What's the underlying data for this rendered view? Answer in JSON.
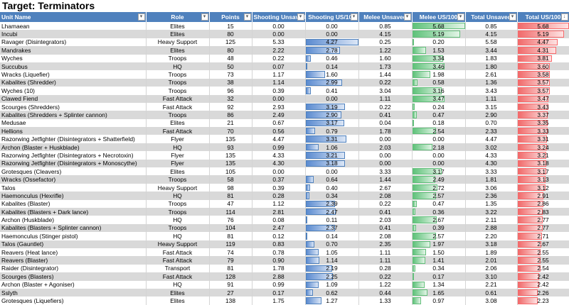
{
  "title": "Target: Terminators",
  "headers": [
    "Unit Name",
    "Role",
    "Points",
    "Shooting Unsaved",
    "Shooting US/100",
    "Melee Unsaved",
    "Melee US/100",
    "Total Unsaved",
    "Total US/100"
  ],
  "filter_icon": "dropdown-arrow",
  "sorted_icon": "sort-desc-filter",
  "colors": {
    "header": "#4f81bd",
    "band": "#d9d9d9",
    "blue_bar": "#5b8bd0",
    "green_bar": "#63be7b",
    "red_bar": "#f8696b"
  },
  "rows": [
    [
      "Lhamaean",
      "Elites",
      "15",
      "0.00",
      "0.00",
      "0.85",
      "5.68",
      "0.85",
      "5.68"
    ],
    [
      "Incubi",
      "Elites",
      "80",
      "0.00",
      "0.00",
      "4.15",
      "5.19",
      "4.15",
      "5.19"
    ],
    [
      "Ravager (Disintegrators)",
      "Heavy Support",
      "125",
      "5.33",
      "4.27",
      "0.25",
      "0.20",
      "5.58",
      "4.47"
    ],
    [
      "Mandrakes",
      "Elites",
      "80",
      "2.22",
      "2.78",
      "1.22",
      "1.53",
      "3.44",
      "4.31"
    ],
    [
      "Wyches",
      "Troops",
      "48",
      "0.22",
      "0.46",
      "1.60",
      "3.34",
      "1.83",
      "3.81"
    ],
    [
      "Succubus",
      "HQ",
      "50",
      "0.07",
      "0.14",
      "1.73",
      "3.46",
      "1.80",
      "3.60"
    ],
    [
      "Wracks (Liquefier)",
      "Troops",
      "73",
      "1.17",
      "1.60",
      "1.44",
      "1.98",
      "2.61",
      "3.58"
    ],
    [
      "Kabalites (Shredder)",
      "Troops",
      "38",
      "1.14",
      "2.99",
      "0.22",
      "0.58",
      "1.36",
      "3.57"
    ],
    [
      "Wyches (10)",
      "Troops",
      "96",
      "0.39",
      "0.41",
      "3.04",
      "3.16",
      "3.43",
      "3.57"
    ],
    [
      "Clawed Fiend",
      "Fast Attack",
      "32",
      "0.00",
      "0.00",
      "1.11",
      "3.47",
      "1.11",
      "3.47"
    ],
    [
      "Scourges (Shredders)",
      "Fast Attack",
      "92",
      "2.93",
      "3.19",
      "0.22",
      "0.24",
      "3.15",
      "3.43"
    ],
    [
      "Kabalites (Shredders + Splinter cannon)",
      "Troops",
      "86",
      "2.49",
      "2.90",
      "0.41",
      "0.47",
      "2.90",
      "3.37"
    ],
    [
      "Medusae",
      "Elites",
      "21",
      "0.67",
      "3.17",
      "0.04",
      "0.18",
      "0.70",
      "3.35"
    ],
    [
      "Hellions",
      "Fast Attack",
      "70",
      "0.56",
      "0.79",
      "1.78",
      "2.54",
      "2.33",
      "3.33"
    ],
    [
      "Razorwing Jetfighter (Disintegrators + Shatterfield)",
      "Flyer",
      "135",
      "4.47",
      "3.31",
      "0.00",
      "0.00",
      "4.47",
      "3.31"
    ],
    [
      "Archon (Blaster + Huskblade)",
      "HQ",
      "93",
      "0.99",
      "1.06",
      "2.03",
      "2.18",
      "3.02",
      "3.24"
    ],
    [
      "Razorwing Jetfighter (Disintegrators + Necrotoxin)",
      "Flyer",
      "135",
      "4.33",
      "3.21",
      "0.00",
      "0.00",
      "4.33",
      "3.21"
    ],
    [
      "Razorwing Jetfighter (Disintegrators + Monoscythe)",
      "Flyer",
      "135",
      "4.30",
      "3.18",
      "0.00",
      "0.00",
      "4.30",
      "3.18"
    ],
    [
      "Grotesques (Cleavers)",
      "Elites",
      "105",
      "0.00",
      "0.00",
      "3.33",
      "3.17",
      "3.33",
      "3.17"
    ],
    [
      "Wracks (Ossefactor)",
      "Troops",
      "58",
      "0.37",
      "0.64",
      "1.44",
      "2.49",
      "1.81",
      "3.13"
    ],
    [
      "Talos",
      "Heavy Support",
      "98",
      "0.39",
      "0.40",
      "2.67",
      "2.72",
      "3.06",
      "3.12"
    ],
    [
      "Haemonculus (Hexrifle)",
      "HQ",
      "81",
      "0.28",
      "0.34",
      "2.08",
      "2.57",
      "2.36",
      "2.91"
    ],
    [
      "Kabalites (Blaster)",
      "Troops",
      "47",
      "1.12",
      "2.39",
      "0.22",
      "0.47",
      "1.35",
      "2.86"
    ],
    [
      "Kabalites (Blasters + Dark lance)",
      "Troops",
      "114",
      "2.81",
      "2.47",
      "0.41",
      "0.36",
      "3.22",
      "2.83"
    ],
    [
      "Archon (Huskblade)",
      "HQ",
      "76",
      "0.08",
      "0.11",
      "2.03",
      "2.67",
      "2.11",
      "2.77"
    ],
    [
      "Kabalites (Blasters + Splinter cannon)",
      "Troops",
      "104",
      "2.47",
      "2.37",
      "0.41",
      "0.39",
      "2.88",
      "2.77"
    ],
    [
      "Haemonculus (Stinger pistol)",
      "HQ",
      "81",
      "0.12",
      "0.14",
      "2.08",
      "2.57",
      "2.20",
      "2.71"
    ],
    [
      "Talos (Gauntlet)",
      "Heavy Support",
      "119",
      "0.83",
      "0.70",
      "2.35",
      "1.97",
      "3.18",
      "2.67"
    ],
    [
      "Reavers (Heat lance)",
      "Fast Attack",
      "74",
      "0.78",
      "1.05",
      "1.11",
      "1.50",
      "1.89",
      "2.55"
    ],
    [
      "Reavers (Blaster)",
      "Fast Attack",
      "79",
      "0.90",
      "1.14",
      "1.11",
      "1.41",
      "2.01",
      "2.55"
    ],
    [
      "Raider (Disintegrator)",
      "Transport",
      "81",
      "1.78",
      "2.19",
      "0.28",
      "0.34",
      "2.06",
      "2.54"
    ],
    [
      "Scourges (Blasters)",
      "Fast Attack",
      "128",
      "2.88",
      "2.25",
      "0.22",
      "0.17",
      "3.10",
      "2.42"
    ],
    [
      "Archon (Blaster + Agoniser)",
      "HQ",
      "91",
      "0.99",
      "1.09",
      "1.22",
      "1.34",
      "2.21",
      "2.42"
    ],
    [
      "Sslyth",
      "Elites",
      "27",
      "0.17",
      "0.62",
      "0.44",
      "1.65",
      "0.61",
      "2.26"
    ],
    [
      "Grotesques (Liquefiers)",
      "Elites",
      "138",
      "1.75",
      "1.27",
      "1.33",
      "0.97",
      "3.08",
      "2.23"
    ]
  ]
}
